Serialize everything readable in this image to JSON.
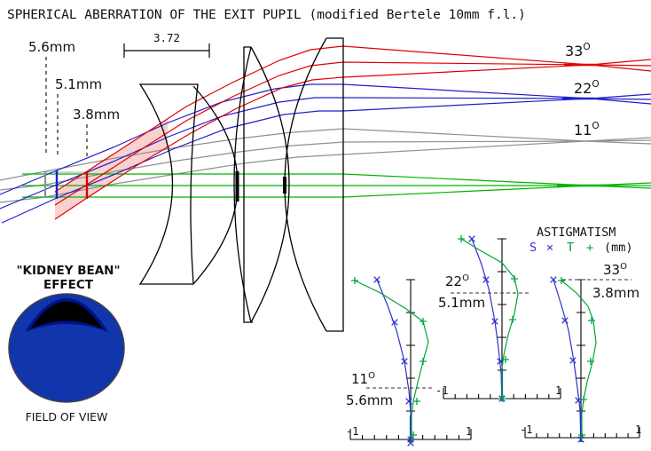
{
  "title": "SPHERICAL ABERRATION OF THE EXIT PUPIL (modified Bertele 10mm f.l.)",
  "scale_bar": {
    "label": "3.72"
  },
  "colors": {
    "ray_33deg": "#e10000",
    "ray_22deg": "#1f1fcc",
    "ray_11deg": "#909090",
    "ray_0deg": "#00b400",
    "beam_fill": "#f8c6c6",
    "marker_box": "#aaaaaa",
    "astig_s": "#3030d0",
    "astig_t": "#00a33c",
    "bean_fill": "#1135ab",
    "bean_ring": "#00128a",
    "bean_crescent": "#000000"
  },
  "entrance_markers": [
    {
      "label": "5.6mm"
    },
    {
      "label": "5.1mm"
    },
    {
      "label": "3.8mm"
    }
  ],
  "field_angles": [
    {
      "value": "33",
      "sup": "O"
    },
    {
      "value": "22",
      "sup": "O"
    },
    {
      "value": "11",
      "sup": "O"
    }
  ],
  "kidney_bean": {
    "line1": "\"KIDNEY BEAN\"",
    "line2": "EFFECT",
    "caption": "FIELD OF VIEW"
  },
  "astigmatism": {
    "title": "ASTIGMATISM",
    "legend": {
      "s": "S",
      "s_marker": "×",
      "t": "T",
      "t_marker": "+",
      "units": "(mm)"
    },
    "plots": [
      {
        "angle": "11",
        "sup": "O",
        "pupil_distance": "5.6mm",
        "x_min": "-1",
        "x_max": "1"
      },
      {
        "angle": "22",
        "sup": "O",
        "pupil_distance": "5.1mm",
        "x_min": "-1",
        "x_max": "1"
      },
      {
        "angle": "33",
        "sup": "O",
        "pupil_distance": "3.8mm",
        "x_min": "-1",
        "x_max": "1"
      }
    ]
  },
  "chart_data": {
    "type": "line",
    "description": "Astigmatism S (sagittal, ×) and T (tangential, +) in mm, plotted against normalized height for three field angles; dashed line marks exit pupil distance for each angle",
    "x_range_mm": [
      -1,
      1
    ],
    "legend_position": "top-right",
    "plots": [
      {
        "field_angle_deg": 11,
        "exit_pupil_mm": 5.6,
        "S": [
          [
            -0.56,
            1.0
          ],
          [
            -0.26,
            0.73
          ],
          [
            -0.1,
            0.49
          ],
          [
            -0.03,
            0.24
          ],
          [
            0,
            0
          ]
        ],
        "T": [
          [
            -0.93,
            0.99
          ],
          [
            0.21,
            0.74
          ],
          [
            0.29,
            0.61
          ],
          [
            0.21,
            0.49
          ],
          [
            0.1,
            0.24
          ],
          [
            0.02,
            0.1
          ],
          [
            0,
            0
          ]
        ],
        "pupil_marker_height_fraction": 0.32
      },
      {
        "field_angle_deg": 22,
        "exit_pupil_mm": 5.1,
        "S": [
          [
            -0.52,
            1.0
          ],
          [
            -0.28,
            0.74
          ],
          [
            -0.12,
            0.48
          ],
          [
            -0.03,
            0.23
          ],
          [
            0,
            0
          ]
        ],
        "T": [
          [
            -0.71,
            1.0
          ],
          [
            0.22,
            0.75
          ],
          [
            0.28,
            0.66
          ],
          [
            0.18,
            0.49
          ],
          [
            0.06,
            0.24
          ],
          [
            0,
            0
          ]
        ],
        "pupil_marker_height_fraction": 0.66
      },
      {
        "field_angle_deg": 33,
        "exit_pupil_mm": 3.8,
        "S": [
          [
            -0.47,
            1.0
          ],
          [
            -0.27,
            0.74
          ],
          [
            -0.14,
            0.48
          ],
          [
            -0.05,
            0.24
          ],
          [
            0,
            0
          ]
        ],
        "T": [
          [
            -0.33,
            1.0
          ],
          [
            0.18,
            0.74
          ],
          [
            0.26,
            0.6
          ],
          [
            0.18,
            0.48
          ],
          [
            0.05,
            0.24
          ],
          [
            0,
            0
          ]
        ],
        "pupil_marker_height_fraction": 1.0
      }
    ],
    "main_diagram_field_angles_deg": [
      0,
      11,
      22,
      33
    ],
    "exit_pupil_positions_mm": {
      "11deg": 5.6,
      "22deg": 5.1,
      "33deg": 3.8
    },
    "scale_bar_mm": 3.72
  }
}
